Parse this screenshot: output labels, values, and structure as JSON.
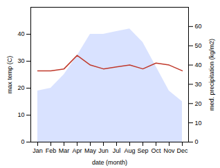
{
  "chart_data": {
    "type": "line",
    "categories": [
      "Jan",
      "Feb",
      "Mar",
      "Apr",
      "May",
      "Jun",
      "Jul",
      "Aug",
      "Sep",
      "Oct",
      "Nov",
      "Dec"
    ],
    "xlabel": "date (month)",
    "ylabel": "max temp (C)",
    "y2label": "med. precipitation (kg/m2)",
    "series": [
      {
        "type": "area",
        "color": "#bfcfff",
        "values": [
          19,
          20,
          25,
          32,
          40,
          40,
          41,
          42,
          37,
          28,
          19,
          15
        ]
      },
      {
        "type": "line",
        "color": "#c0392b",
        "axis": "y2",
        "values": [
          37,
          37,
          38,
          45,
          40,
          38,
          39,
          40,
          38,
          41,
          40,
          37
        ]
      }
    ],
    "ylim": [
      0,
      50
    ],
    "yticks": [
      0,
      10,
      20,
      30,
      40
    ],
    "y2lim": [
      0,
      70
    ],
    "y2ticks": [
      0,
      10,
      20,
      30,
      40,
      50,
      60
    ]
  }
}
